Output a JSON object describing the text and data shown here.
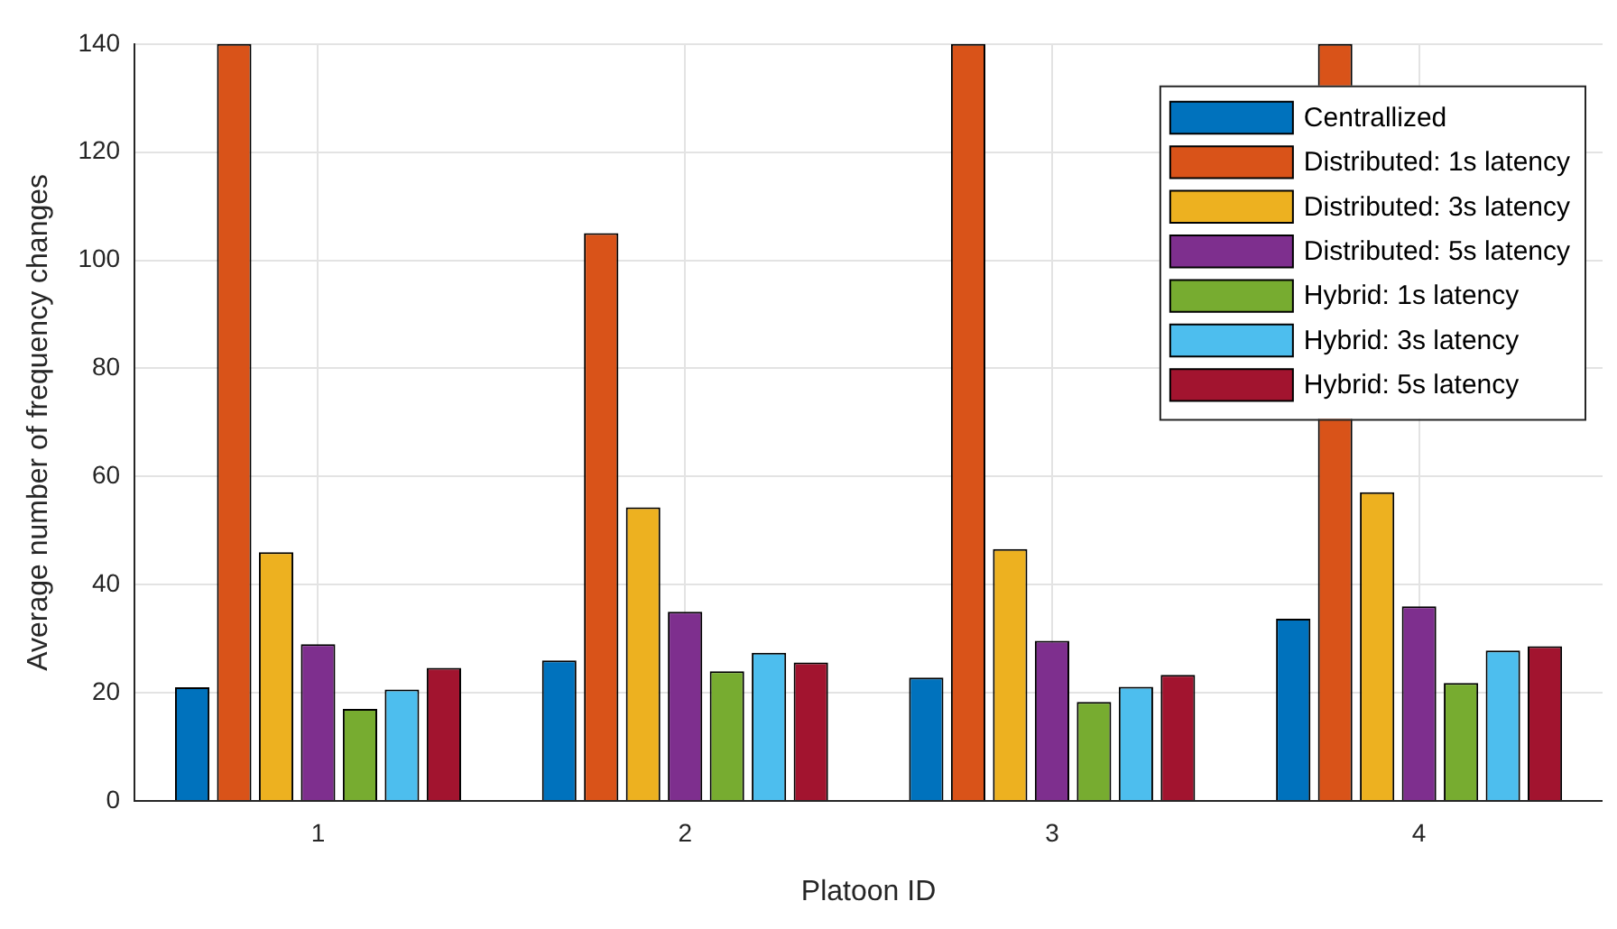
{
  "chart_data": {
    "type": "bar",
    "xlabel": "Platoon ID",
    "ylabel": "Average number of frequency changes",
    "categories": [
      "1",
      "2",
      "3",
      "4"
    ],
    "series": [
      {
        "name": "Centrallized",
        "color": "#0072bd",
        "values": [
          21,
          26,
          22.8,
          33.7
        ]
      },
      {
        "name": "Distributed: 1s latency",
        "color": "#d95319",
        "values": [
          140,
          105,
          140,
          140
        ]
      },
      {
        "name": "Distributed: 3s latency",
        "color": "#edb120",
        "values": [
          46,
          54.3,
          46.6,
          57.1
        ]
      },
      {
        "name": "Distributed: 5s latency",
        "color": "#7e2f8e",
        "values": [
          29,
          35,
          29.6,
          36
        ]
      },
      {
        "name": "Hybrid: 1s latency",
        "color": "#77ac30",
        "values": [
          17,
          24,
          18.3,
          21.8
        ]
      },
      {
        "name": "Hybrid: 3s latency",
        "color": "#4dbeee",
        "values": [
          20.6,
          27.4,
          21.1,
          27.8
        ]
      },
      {
        "name": "Hybrid: 5s latency",
        "color": "#a2142f",
        "values": [
          24.6,
          25.6,
          23.3,
          28.6
        ]
      }
    ],
    "ylim": [
      0,
      140
    ],
    "yticks": [
      0,
      20,
      40,
      60,
      80,
      100,
      120,
      140
    ],
    "grid": true,
    "legend": "top right"
  }
}
